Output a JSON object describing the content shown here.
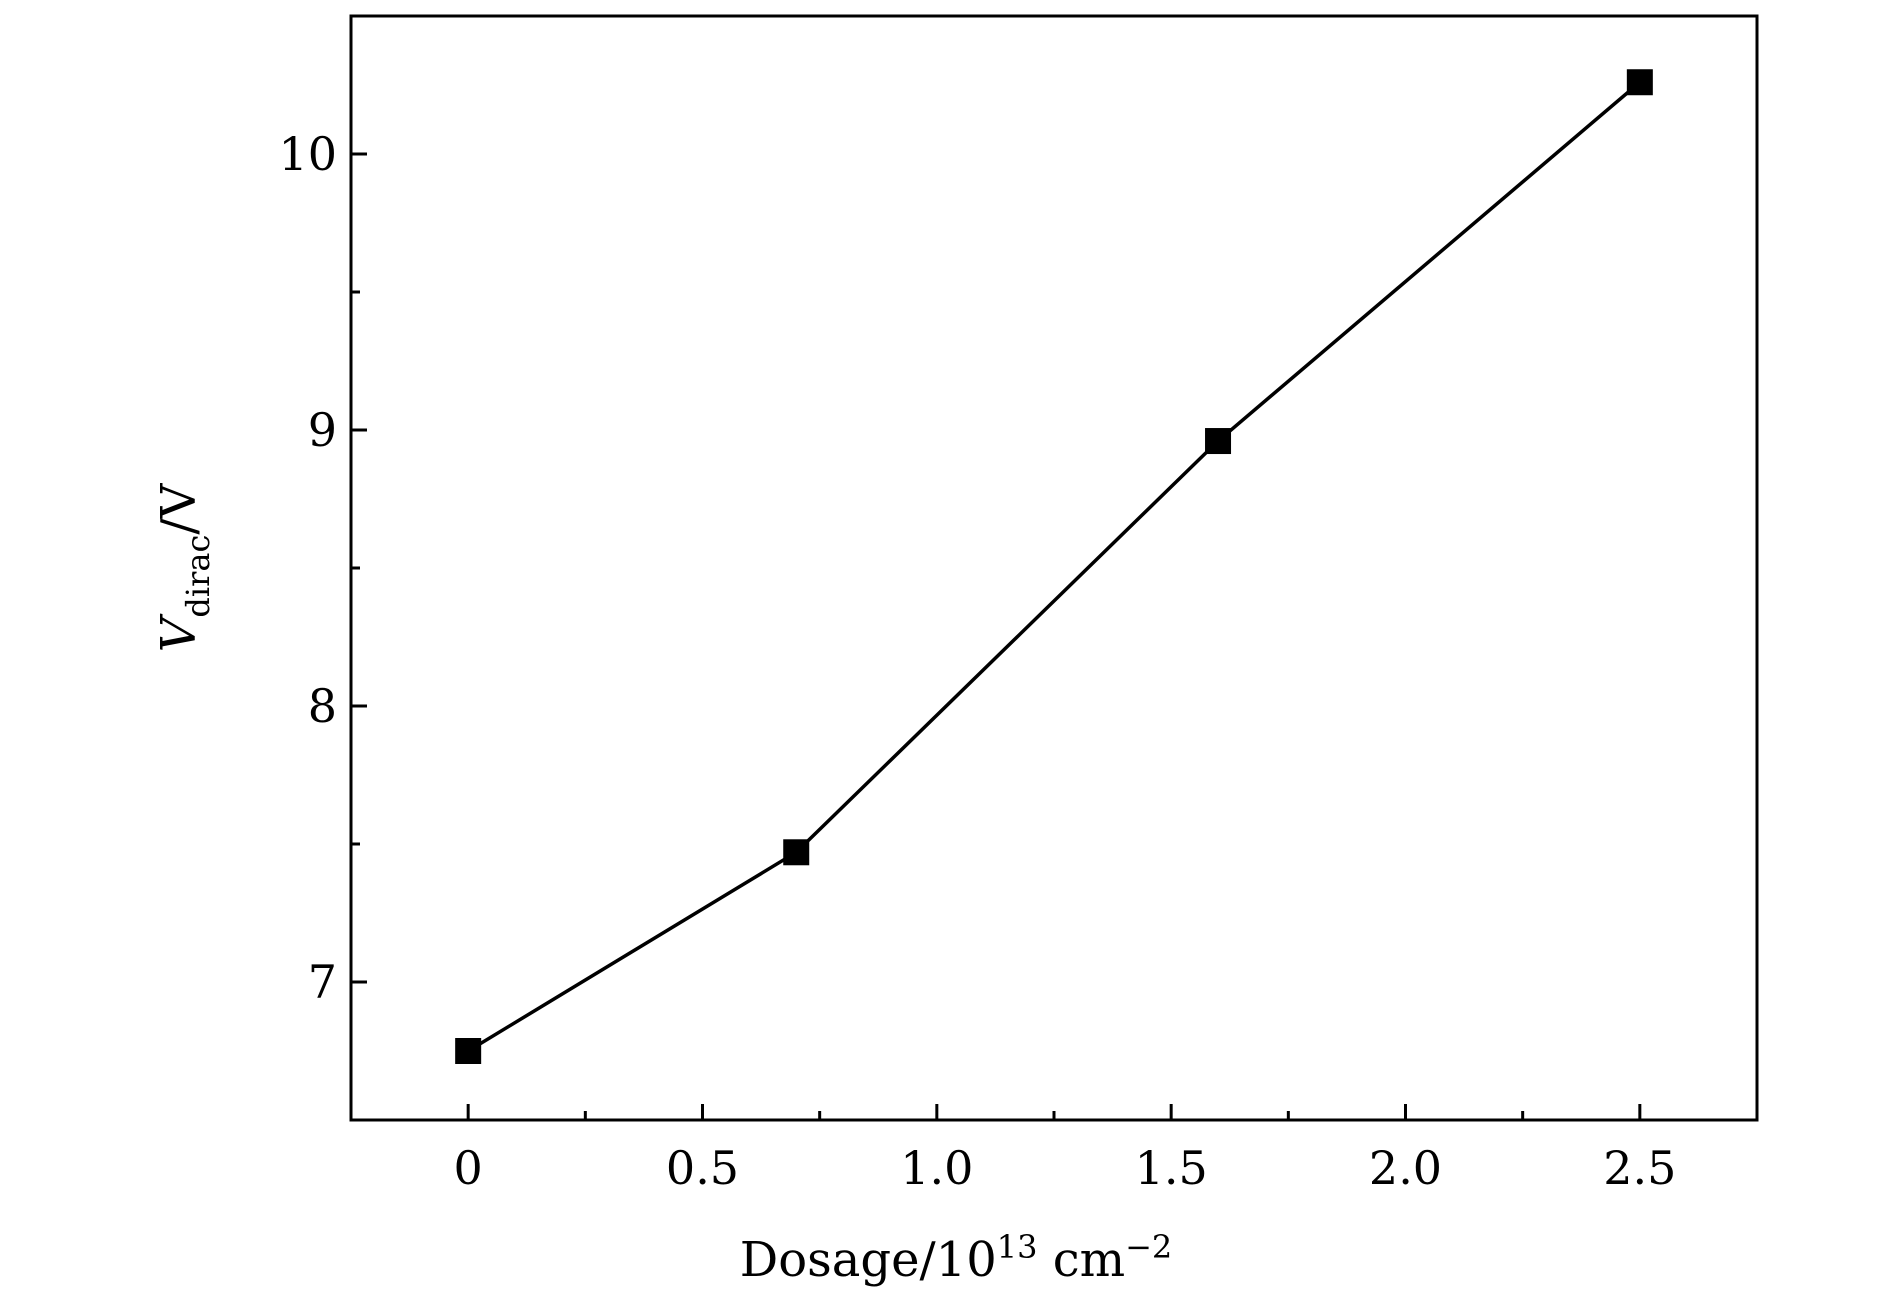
{
  "chart_data": {
    "type": "line",
    "title": "",
    "xlabel": {
      "base": "Dosage/10",
      "sup1": "13",
      "unit": " cm",
      "sup2": "−2"
    },
    "ylabel": {
      "main": "V",
      "sub": "dirac",
      "unit": "/V"
    },
    "xlim": [
      -0.25,
      2.75
    ],
    "ylim": [
      6.5,
      10.5
    ],
    "x_ticks": [
      {
        "value": 0,
        "label": "0"
      },
      {
        "value": 0.5,
        "label": "0.5"
      },
      {
        "value": 1.0,
        "label": "1.0"
      },
      {
        "value": 1.5,
        "label": "1.5"
      },
      {
        "value": 2.0,
        "label": "2.0"
      },
      {
        "value": 2.5,
        "label": "2.5"
      }
    ],
    "x_minor_ticks": [
      0.25,
      0.75,
      1.25,
      1.75,
      2.25
    ],
    "y_ticks": [
      {
        "value": 7,
        "label": "7"
      },
      {
        "value": 8,
        "label": "8"
      },
      {
        "value": 9,
        "label": "9"
      },
      {
        "value": 10,
        "label": "10"
      }
    ],
    "y_minor_ticks": [
      7.5,
      8.5,
      9.5
    ],
    "grid": false,
    "series": [
      {
        "marker": "square",
        "color": "#000000",
        "x": [
          0,
          0.7,
          1.6,
          2.5
        ],
        "y": [
          6.75,
          7.47,
          8.96,
          10.26
        ]
      }
    ]
  }
}
